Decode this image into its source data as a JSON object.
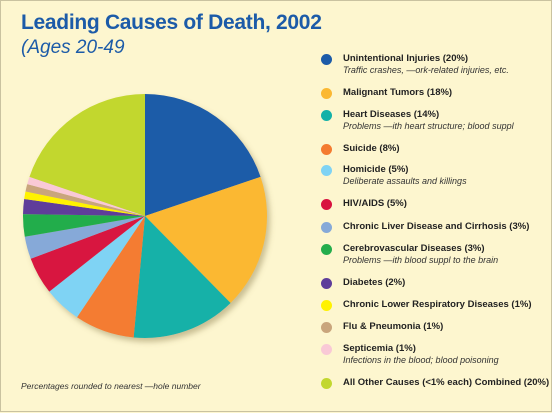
{
  "chart_data": {
    "type": "pie",
    "title": "Leading Causes of Death, 2002",
    "subtitle": "(Ages 20-49",
    "footnote": "Percentages rounded to nearest —hole number",
    "slices": [
      {
        "name": "Unintentional Injuries",
        "label": "Unintentional Injuries (20%)",
        "value": 20,
        "color": "#1c5ba8",
        "description": "Traffic crashes, —ork-related injuries, etc."
      },
      {
        "name": "Malignant Tumors",
        "label": "Malignant Tumors (18%)",
        "value": 18,
        "color": "#fbb832",
        "description": ""
      },
      {
        "name": "Heart Diseases",
        "label": "Heart Diseases (14%)",
        "value": 14,
        "color": "#14b1a8",
        "description": "Problems —ith heart structure; blood suppl"
      },
      {
        "name": "Suicide",
        "label": "Suicide (8%)",
        "value": 8,
        "color": "#f47b30",
        "description": ""
      },
      {
        "name": "Homicide",
        "label": "Homicide (5%)",
        "value": 5,
        "color": "#7fd3f4",
        "description": "Deliberate assaults and killings"
      },
      {
        "name": "HIV/AIDS",
        "label": "HIV/AIDS (5%)",
        "value": 5,
        "color": "#d8123f",
        "description": ""
      },
      {
        "name": "Chronic Liver Disease and Cirrhosis",
        "label": "Chronic Liver Disease and Cirrhosis (3%)",
        "value": 3,
        "color": "#86a9d8",
        "description": ""
      },
      {
        "name": "Cerebrovascular Diseases",
        "label": "Cerebrovascular Diseases (3%)",
        "value": 3,
        "color": "#24ad4c",
        "description": "Problems —ith blood suppl   to the brain"
      },
      {
        "name": "Diabetes",
        "label": "Diabetes (2%)",
        "value": 2,
        "color": "#5e3d9a",
        "description": ""
      },
      {
        "name": "Chronic Lower Respiratory Diseases",
        "label": "Chronic Lower Respiratory Diseases (1%)",
        "value": 1,
        "color": "#fff200",
        "description": ""
      },
      {
        "name": "Flu & Pneumonia",
        "label": "Flu & Pneumonia (1%)",
        "value": 1,
        "color": "#c9a57c",
        "description": ""
      },
      {
        "name": "Septicemia",
        "label": "Septicemia (1%)",
        "value": 1,
        "color": "#f9c9d6",
        "description": "Infections in the blood; blood poisoning"
      },
      {
        "name": "All Other Causes",
        "label": "All Other Causes (<1% each) Combined (20%)",
        "value": 20,
        "color": "#c2d72f",
        "description": ""
      }
    ]
  }
}
